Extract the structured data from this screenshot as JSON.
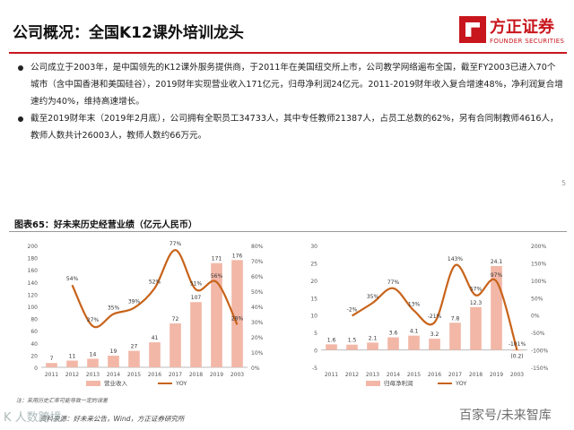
{
  "header": {
    "title": "公司概况：全国K12课外培训龙头",
    "logo_cn": "方正证券",
    "logo_en": "FOUNDER SECURITIES"
  },
  "bullets": [
    "公司成立于2003年，是中国领先的K12课外服务提供商，于2011年在美国纽交所上市，公司教学网络遍布全国，截至FY2003已进入70个城市（含中国香港和美国硅谷），2019财年实现营业收入171亿元，归母净利润24亿元。2011-2019财年收入复合增速48%，净利润复合增速约为40%，维持高速增长。",
    "截至2019财年末（2019年2月底），公司拥有全职员工34733人，其中专任教师21387人，占员工总数的62%，另有合同制教师4616人，教师人数共计26003人，教师人数约66万元。"
  ],
  "figure_title": "图表65：好未来历史经营业绩（亿元人民币）",
  "footnote": "注：采用历史汇率可能导致一定的误差",
  "source": "资料来源：好未来公告，Wind，方正证券研究所",
  "page_number": "5",
  "watermark_left": "K 人数跨境",
  "watermark_right": "百家号/未来智库",
  "chart_data": [
    {
      "type": "bar",
      "categories": [
        "2011",
        "2012",
        "2013",
        "2014",
        "2015",
        "2016",
        "2017",
        "2018",
        "2019",
        "2003"
      ],
      "series": [
        {
          "name": "营业收入",
          "kind": "bar",
          "axis": "left",
          "color": "#f2b7a7",
          "values": [
            7,
            11,
            14,
            19,
            27,
            41,
            72,
            107,
            171,
            176
          ],
          "labels": [
            "7",
            "11",
            "14",
            "19",
            "27",
            "41",
            "72",
            "107",
            "171",
            "176"
          ]
        },
        {
          "name": "YOY",
          "kind": "line",
          "axis": "right",
          "color": "#c8631a",
          "values": [
            null,
            54,
            27,
            35,
            39,
            52,
            77,
            51,
            56,
            28
          ],
          "labels": [
            "",
            "54%",
            "27%",
            "35%",
            "39%",
            "52%",
            "77%",
            "51%",
            "56%",
            "28%"
          ]
        }
      ],
      "ylim_left": [
        0,
        200
      ],
      "yticks_left": [
        "0",
        "20",
        "40",
        "60",
        "80",
        "100",
        "120",
        "140",
        "160",
        "180",
        "200"
      ],
      "ylim_right": [
        0,
        80
      ],
      "yticks_right": [
        "0%",
        "10%",
        "20%",
        "30%",
        "40%",
        "50%",
        "60%",
        "70%",
        "80%"
      ],
      "legend": "bottom",
      "grid": false
    },
    {
      "type": "bar",
      "categories": [
        "2011",
        "2012",
        "2013",
        "2014",
        "2015",
        "2016",
        "2017",
        "2018",
        "2019",
        "2003"
      ],
      "series": [
        {
          "name": "归母净利润",
          "kind": "bar",
          "axis": "left",
          "color": "#f2b7a7",
          "values": [
            1.6,
            1.5,
            2.1,
            3.6,
            4.1,
            3.2,
            7.8,
            12.3,
            24.1,
            -0.2
          ],
          "labels": [
            "1.6",
            "1.5",
            "2.1",
            "3.6",
            "4.1",
            "3.2",
            "7.8",
            "12.3",
            "24.1",
            "(0.2)"
          ]
        },
        {
          "name": "YOY",
          "kind": "line",
          "axis": "right",
          "color": "#c8631a",
          "values": [
            null,
            -2,
            35,
            77,
            13,
            -21,
            143,
            57,
            97,
            -101
          ],
          "labels": [
            "",
            "-2%",
            "35%",
            "77%",
            "13%",
            "-21%",
            "143%",
            "57%",
            "97%",
            "-101%"
          ]
        }
      ],
      "ylim_left": [
        -5,
        30
      ],
      "yticks_left": [
        "-5",
        "0",
        "5",
        "10",
        "15",
        "20",
        "25",
        "30"
      ],
      "ylim_right": [
        -150,
        200
      ],
      "yticks_right": [
        "-150%",
        "-100%",
        "-50%",
        "0%",
        "50%",
        "100%",
        "150%",
        "200%"
      ],
      "legend": "bottom",
      "grid": false
    }
  ]
}
